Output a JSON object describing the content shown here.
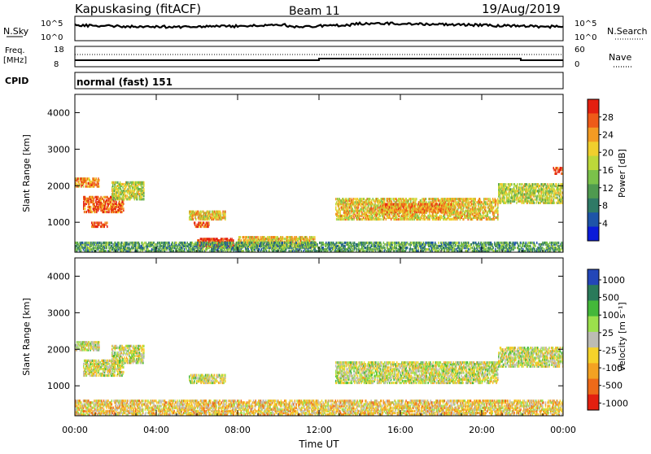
{
  "header": {
    "radar": "Kapuskasing (fitACF)",
    "beam": "Beam 11",
    "date": "19/Aug/2019"
  },
  "nsky_panel": {
    "left_label": "N.Sky",
    "right_label": "N.Search",
    "left_ticks": [
      "10^5",
      "10^0"
    ],
    "right_ticks": [
      "10^5",
      "10^0"
    ]
  },
  "freq_panel": {
    "left_label_1": "Freq.",
    "left_label_2": "[MHz]",
    "left_ticks": [
      "18",
      "8"
    ],
    "right_ticks": [
      "60",
      "0"
    ],
    "right_label": "Nave"
  },
  "cpid_panel": {
    "label": "CPID",
    "value": "normal (fast) 151"
  },
  "chart_data": [
    {
      "type": "heatmap",
      "name": "power",
      "ylabel": "Slant Range [km]",
      "y_ticks": [
        1000,
        2000,
        3000,
        4000
      ],
      "ylim": [
        180,
        4500
      ],
      "x_ticks": [
        "00:00",
        "04:00",
        "08:00",
        "12:00",
        "16:00",
        "20:00",
        "00:00"
      ],
      "xlim_hours": [
        0,
        24
      ],
      "colorbar": {
        "label": "Power [dB]",
        "ticks": [
          "4",
          "8",
          "12",
          "16",
          "20",
          "24",
          "28"
        ],
        "colors": [
          "#0b1bd9",
          "#1e54a8",
          "#2f7a66",
          "#4f9a4f",
          "#7bc24a",
          "#bcd83a",
          "#f0cf2d",
          "#f39b23",
          "#ee5a18",
          "#e32010"
        ]
      },
      "regions": [
        {
          "t0": 0.0,
          "t1": 1.2,
          "r0": 1950,
          "r1": 2200,
          "level": 7
        },
        {
          "t0": 0.4,
          "t1": 2.4,
          "r0": 1250,
          "r1": 1700,
          "level": 8
        },
        {
          "t0": 0.8,
          "t1": 1.6,
          "r0": 850,
          "r1": 1000,
          "level": 9
        },
        {
          "t0": 1.8,
          "t1": 3.4,
          "r0": 1600,
          "r1": 2100,
          "level": 5
        },
        {
          "t0": 5.6,
          "t1": 7.4,
          "r0": 1050,
          "r1": 1300,
          "level": 6
        },
        {
          "t0": 5.8,
          "t1": 6.6,
          "r0": 850,
          "r1": 1000,
          "level": 8
        },
        {
          "t0": 6.0,
          "t1": 7.8,
          "r0": 300,
          "r1": 550,
          "level": 9
        },
        {
          "t0": 8.0,
          "t1": 11.8,
          "r0": 300,
          "r1": 600,
          "level": 6
        },
        {
          "t0": 12.8,
          "t1": 20.8,
          "r0": 1050,
          "r1": 1650,
          "level": 6
        },
        {
          "t0": 15.0,
          "t1": 18.5,
          "r0": 1250,
          "r1": 1500,
          "level": 7
        },
        {
          "t0": 20.8,
          "t1": 24.0,
          "r0": 1500,
          "r1": 2050,
          "level": 5
        },
        {
          "t0": 23.5,
          "t1": 24.0,
          "r0": 2300,
          "r1": 2500,
          "level": 9
        },
        {
          "t0": 0.0,
          "t1": 24.0,
          "r0": 180,
          "r1": 450,
          "level": 3
        }
      ]
    },
    {
      "type": "heatmap",
      "name": "velocity",
      "ylabel": "Slant Range [km]",
      "y_ticks": [
        1000,
        2000,
        3000,
        4000
      ],
      "ylim": [
        180,
        4500
      ],
      "x_ticks": [
        "00:00",
        "04:00",
        "08:00",
        "12:00",
        "16:00",
        "20:00",
        "00:00"
      ],
      "xlim_hours": [
        0,
        24
      ],
      "xlabel": "Time UT",
      "colorbar": {
        "label": "Velocity [m s⁻¹]",
        "ticks": [
          "1000",
          "500",
          "100",
          "25",
          "-25",
          "-100",
          "-500",
          "-1000"
        ],
        "colors": [
          "#2346b8",
          "#2a7a5a",
          "#44b83a",
          "#9be04c",
          "#bcbcb4",
          "#f5d22a",
          "#f3a222",
          "#ee6a18",
          "#e32010"
        ]
      },
      "regions": [
        {
          "t0": 0.0,
          "t1": 1.2,
          "r0": 1950,
          "r1": 2200,
          "level": 4
        },
        {
          "t0": 0.4,
          "t1": 2.4,
          "r0": 1250,
          "r1": 1700,
          "level": 4
        },
        {
          "t0": 1.8,
          "t1": 3.4,
          "r0": 1600,
          "r1": 2100,
          "level": 4
        },
        {
          "t0": 5.6,
          "t1": 7.4,
          "r0": 1050,
          "r1": 1300,
          "level": 4
        },
        {
          "t0": 12.8,
          "t1": 20.8,
          "r0": 1050,
          "r1": 1650,
          "level": 4
        },
        {
          "t0": 20.8,
          "t1": 24.0,
          "r0": 1500,
          "r1": 2050,
          "level": 4
        },
        {
          "t0": 0.0,
          "t1": 24.0,
          "r0": 180,
          "r1": 600,
          "level": 5
        }
      ]
    }
  ]
}
